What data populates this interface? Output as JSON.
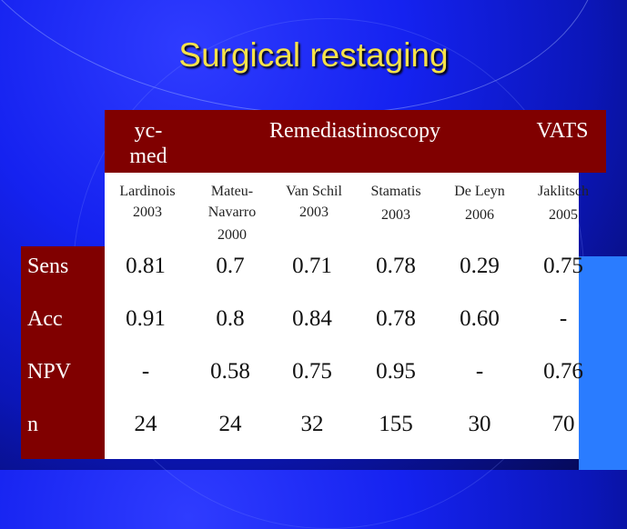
{
  "slide": {
    "title": "Surgical restaging"
  },
  "table": {
    "group_headers": [
      "yc-\nmed",
      "Remediastinoscopy",
      "VATS"
    ],
    "studies": [
      {
        "name": "Lardinois",
        "year": "2003"
      },
      {
        "name": "Mateu-\nNavarro",
        "year": "2000"
      },
      {
        "name": "Van Schil",
        "year": "2003"
      },
      {
        "name": "Stamatis",
        "year": "2003"
      },
      {
        "name": "De Leyn",
        "year": "2006"
      },
      {
        "name": "Jaklitsch",
        "year": "2005"
      }
    ],
    "rows": [
      {
        "label": "Sens",
        "values": [
          "0.81",
          "0.7",
          "0.71",
          "0.78",
          "0.29",
          "0.75"
        ]
      },
      {
        "label": "Acc",
        "values": [
          "0.91",
          "0.8",
          "0.84",
          "0.78",
          "0.60",
          "-"
        ]
      },
      {
        "label": "NPV",
        "values": [
          "-",
          "0.58",
          "0.75",
          "0.95",
          "-",
          "0.76"
        ]
      },
      {
        "label": "n",
        "values": [
          "24",
          "24",
          "32",
          "155",
          "30",
          "70"
        ]
      }
    ]
  }
}
